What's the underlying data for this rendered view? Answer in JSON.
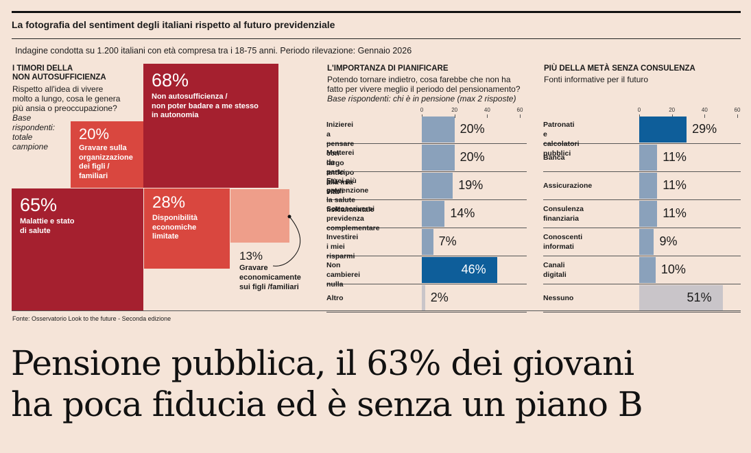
{
  "header": {
    "title": "La fotografia del sentiment degli italiani rispetto al futuro previdenziale",
    "survey": "Indagine condotta su 1.200 italiani con età compresa tra i 18-75 anni. Periodo rilevazione: Gennaio 2026"
  },
  "colors": {
    "dark_red": "#a5202f",
    "mid_red": "#d9473f",
    "light_red": "#ee9e8a",
    "bar_blue": "#8aa1bb",
    "bar_dark": "#0e5e9a",
    "bar_grey": "#c9c5c9"
  },
  "section1": {
    "heading_line1": "I TIMORI DELLA",
    "heading_line2": "NON AUTOSUFFICIENZA",
    "question_line1": "Rispetto all'idea di vivere",
    "question_line2": "molto a lungo, cosa le genera",
    "question_line3": "più ansia o preoccupazione?",
    "base_line1": "Base",
    "base_line2": "rispondenti:",
    "base_line3": "totale",
    "base_line4": "campione"
  },
  "section2": {
    "heading": "L'IMPORTANZA DI PIANIFICARE",
    "question_line1": "Potendo tornare indietro, cosa farebbe che non ha",
    "question_line2": "fatto per vivere meglio il periodo del pensionamento?",
    "base": "Base rispondenti: chi è in pensione (max 2 risposte)"
  },
  "section3": {
    "heading": "PIÙ DELLA METÀ SENZA CONSULENZA",
    "subtitle": "Fonti informative per il futuro"
  },
  "chart_data": [
    {
      "type": "treemap",
      "items": [
        {
          "pct": "68%",
          "value": 68,
          "label_line1": "Non autosufficienza /",
          "label_line2": "non poter badare a me stesso",
          "label_line3": "in autonomia"
        },
        {
          "pct": "65%",
          "value": 65,
          "label_line1": "Malattie e stato",
          "label_line2": "di salute"
        },
        {
          "pct": "28%",
          "value": 28,
          "label_line1": "Disponibilità",
          "label_line2": "economiche",
          "label_line3": "limitate"
        },
        {
          "pct": "20%",
          "value": 20,
          "label_line1": "Gravare sulla",
          "label_line2": "organizzazione",
          "label_line3": "dei figli /",
          "label_line4": "familiari"
        },
        {
          "pct": "13%",
          "value": 13,
          "label_line1": "Gravare",
          "label_line2": "economicamente",
          "label_line3": "sui figli /familiari"
        }
      ]
    },
    {
      "type": "bar",
      "orientation": "horizontal",
      "xlim": [
        0,
        60
      ],
      "ticks": [
        "0",
        "20",
        "40",
        "60"
      ],
      "rows": [
        {
          "line1": "Inizierei a pensare con",
          "line2": "largo anticipo alla mia vita",
          "value": 20,
          "label": "20%"
        },
        {
          "line1": "Metterei da parte",
          "line2": "più soldi",
          "value": 20,
          "label": "20%"
        },
        {
          "line1": "Farei più prevenzione",
          "line2": "la salute fisica/mentale",
          "value": 19,
          "label": "19%"
        },
        {
          "line1": "Sottoscriverei previdenza",
          "line2": "complementare",
          "value": 14,
          "label": "14%"
        },
        {
          "line1": "Investirei i miei",
          "line2": "risparmi",
          "value": 7,
          "label": "7%"
        },
        {
          "line1": "Non cambierei",
          "line2": "nulla",
          "value": 46,
          "label": "46%",
          "highlight": "dark"
        },
        {
          "line1": "Altro",
          "line2": "",
          "value": 2,
          "label": "2%",
          "highlight": "grey"
        }
      ]
    },
    {
      "type": "bar",
      "orientation": "horizontal",
      "xlim": [
        0,
        60
      ],
      "ticks": [
        "0",
        "20",
        "40",
        "60"
      ],
      "rows": [
        {
          "line1": "Patronati e calcolatori",
          "line2": "pubblici",
          "value": 29,
          "label": "29%",
          "highlight": "dark"
        },
        {
          "line1": "Banca",
          "line2": "",
          "value": 11,
          "label": "11%"
        },
        {
          "line1": "Assicurazione",
          "line2": "",
          "value": 11,
          "label": "11%"
        },
        {
          "line1": "Consulenza",
          "line2": "finanziaria",
          "value": 11,
          "label": "11%"
        },
        {
          "line1": "Conoscenti",
          "line2": "informati",
          "value": 9,
          "label": "9%"
        },
        {
          "line1": "Canali",
          "line2": "digitali",
          "value": 10,
          "label": "10%"
        },
        {
          "line1": "Nessuno",
          "line2": "",
          "value": 51,
          "label": "51%",
          "highlight": "grey"
        }
      ]
    }
  ],
  "footer": {
    "source": "Fonte: Osservatorio Look to the future - Seconda edizione"
  },
  "headline": {
    "line1": "Pensione pubblica, il 63% dei giovani",
    "line2": "ha poca fiducia ed è senza un piano B"
  }
}
